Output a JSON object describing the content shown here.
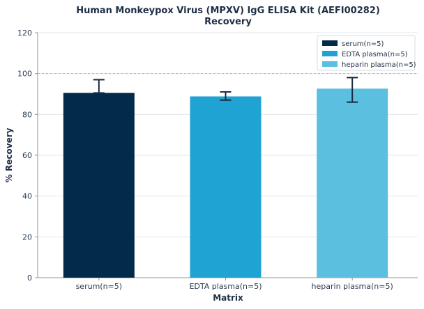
{
  "chart_data": {
    "type": "bar",
    "title": "Human Monkeypox Virus (MPXV) IgG ELISA Kit (AEFI00282)",
    "subtitle": "Recovery",
    "xlabel": "Matrix",
    "ylabel": "% Recovery",
    "ylim": [
      0,
      120
    ],
    "yticks": [
      0,
      20,
      40,
      60,
      80,
      100,
      120
    ],
    "reference_line": 100,
    "grid": true,
    "legend_position": "top-right",
    "categories": [
      "serum(n=5)",
      "EDTA plasma(n=5)",
      "heparin plasma(n=5)"
    ],
    "values": [
      90.5,
      88.8,
      92.6
    ],
    "error_low": [
      90.5,
      87.0,
      86.0
    ],
    "error_high": [
      97.0,
      91.0,
      98.0
    ],
    "colors": [
      "#022a4a",
      "#1fa3d3",
      "#5bbfe0"
    ],
    "legend": [
      "serum(n=5)",
      "EDTA plasma(n=5)",
      "heparin plasma(n=5)"
    ]
  }
}
